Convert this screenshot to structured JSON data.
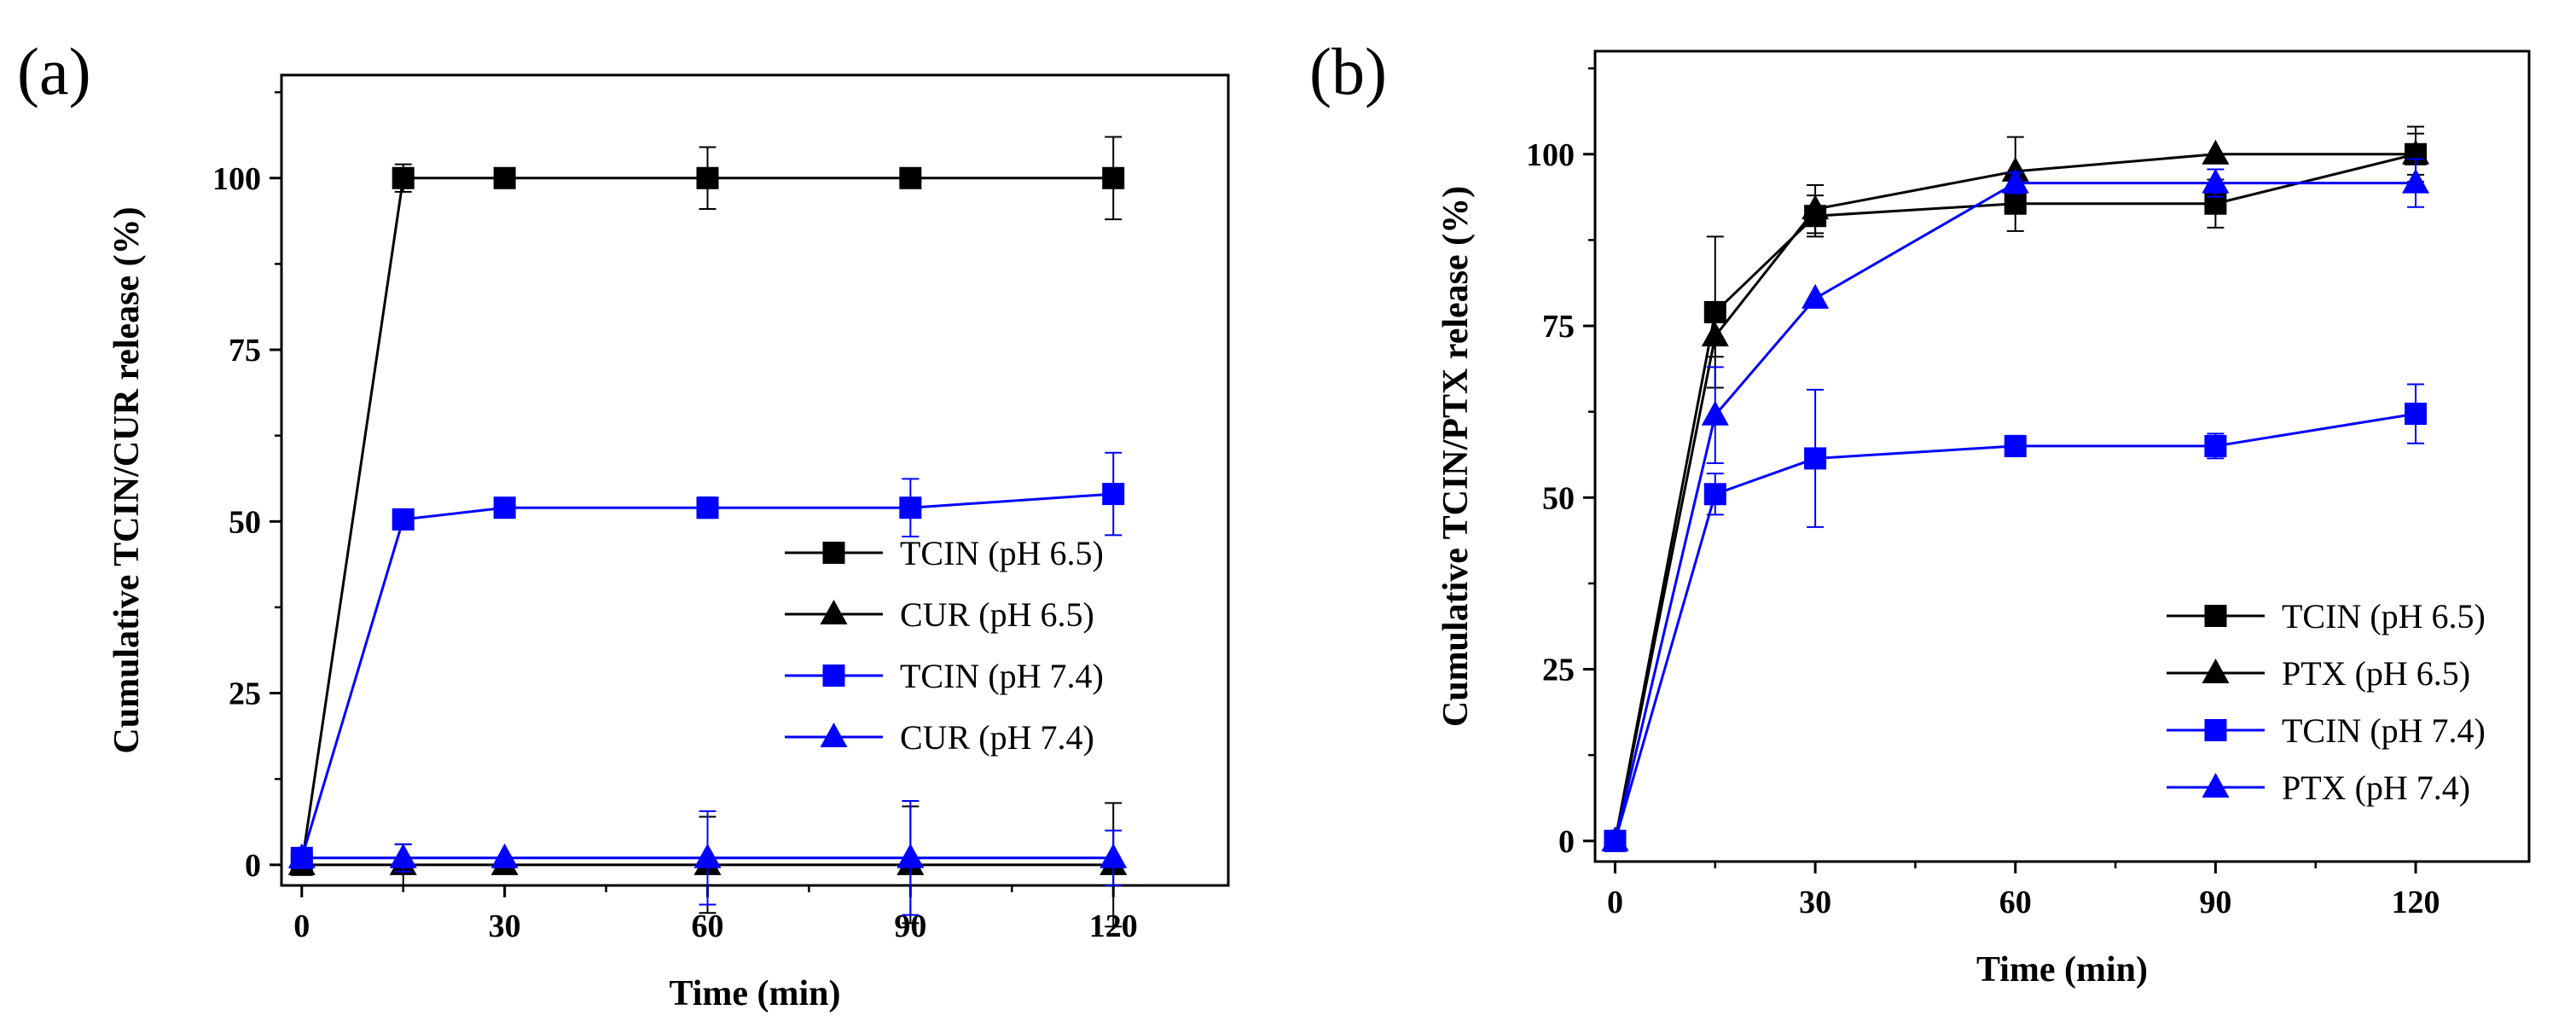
{
  "colors": {
    "black": "#000000",
    "blue": "#0000ff"
  },
  "chart_data": [
    {
      "panel_label": "(a)",
      "type": "line",
      "title": "",
      "xlabel": "Time (min)",
      "ylabel": "Cumulative TCIN/CUR release (%)",
      "x_ticks": [
        0,
        30,
        60,
        90,
        120
      ],
      "y_ticks": [
        0,
        25,
        50,
        75,
        100
      ],
      "xlim": [
        -3,
        137
      ],
      "ylim": [
        -3,
        115
      ],
      "grid": false,
      "legend_position": "bottom-right",
      "series": [
        {
          "name": "TCIN (pH 6.5)",
          "color": "#000000",
          "marker": "square",
          "x": [
            0,
            15,
            30,
            60,
            90,
            120
          ],
          "y": [
            0,
            100,
            100,
            100,
            100,
            100
          ],
          "error": [
            0,
            2,
            0,
            4.5,
            0,
            6
          ]
        },
        {
          "name": "CUR (pH 6.5)",
          "color": "#000000",
          "marker": "triangle",
          "x": [
            0,
            15,
            30,
            60,
            90,
            120
          ],
          "y": [
            0,
            0,
            0,
            0,
            0,
            0
          ],
          "error": [
            0,
            3,
            0,
            7,
            8.5,
            9
          ]
        },
        {
          "name": "TCIN (pH 7.4)",
          "color": "#0000ff",
          "marker": "square",
          "x": [
            0,
            15,
            30,
            60,
            90,
            120
          ],
          "y": [
            1,
            50.3,
            52,
            52,
            52,
            54
          ],
          "error": [
            0,
            0.6,
            0,
            1.5,
            4.2,
            6
          ]
        },
        {
          "name": "CUR (pH 7.4)",
          "color": "#0000ff",
          "marker": "triangle",
          "x": [
            0,
            15,
            30,
            60,
            90,
            120
          ],
          "y": [
            1,
            1,
            1,
            1,
            1,
            1
          ],
          "error": [
            0,
            2,
            0,
            6.8,
            8.3,
            4
          ]
        }
      ]
    },
    {
      "panel_label": "(b)",
      "type": "line",
      "title": "",
      "xlabel": "Time (min)",
      "ylabel": "Cumulative TCIN/PTX release (%)",
      "x_ticks": [
        0,
        30,
        60,
        90,
        120
      ],
      "y_ticks": [
        0,
        25,
        50,
        75,
        100
      ],
      "xlim": [
        -3,
        137
      ],
      "ylim": [
        -3,
        115
      ],
      "grid": false,
      "legend_position": "bottom-right",
      "series": [
        {
          "name": "TCIN (pH 6.5)",
          "color": "#000000",
          "marker": "square",
          "x": [
            0,
            15,
            30,
            60,
            90,
            120
          ],
          "y": [
            0,
            77,
            91,
            92.8,
            92.8,
            100
          ],
          "error": [
            0,
            11,
            3,
            4,
            3.5,
            4
          ]
        },
        {
          "name": "PTX (pH 6.5)",
          "color": "#000000",
          "marker": "triangle",
          "x": [
            0,
            15,
            30,
            60,
            90,
            120
          ],
          "y": [
            0,
            73.5,
            92,
            97.5,
            100,
            100
          ],
          "error": [
            0,
            3,
            3.5,
            5,
            0,
            3
          ]
        },
        {
          "name": "TCIN (pH 7.4)",
          "color": "#0000ff",
          "marker": "square",
          "x": [
            0,
            15,
            30,
            60,
            90,
            120
          ],
          "y": [
            0,
            50.5,
            55.7,
            57.5,
            57.5,
            62.2
          ],
          "error": [
            0,
            3,
            10,
            1.5,
            1.8,
            4.3
          ]
        },
        {
          "name": "PTX (pH 7.4)",
          "color": "#0000ff",
          "marker": "triangle",
          "x": [
            0,
            15,
            30,
            60,
            90,
            120
          ],
          "y": [
            0,
            62,
            79,
            95.8,
            95.8,
            95.8
          ],
          "error": [
            0,
            7,
            0,
            1.5,
            2,
            3.5
          ]
        }
      ]
    }
  ]
}
